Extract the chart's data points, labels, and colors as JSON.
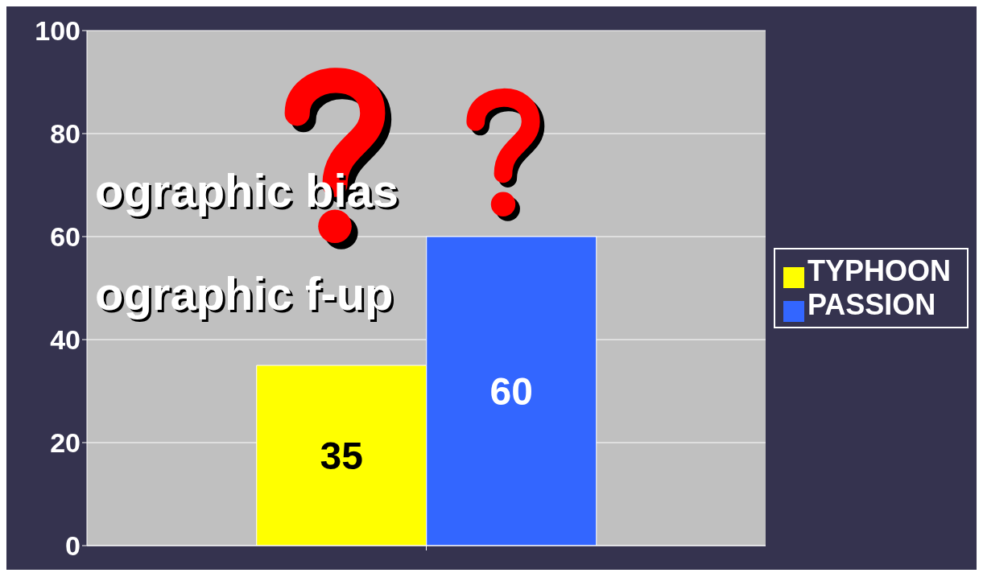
{
  "chart_data": {
    "type": "bar",
    "categories": [
      null
    ],
    "series": [
      {
        "name": "TYPHOON",
        "color": "#ffff00",
        "values": [
          35
        ]
      },
      {
        "name": "PASSION",
        "color": "#3366ff",
        "values": [
          60
        ]
      }
    ],
    "ylim": [
      0,
      100
    ],
    "yticks": [
      0,
      20,
      40,
      60,
      80,
      100
    ],
    "grid": "y",
    "legend": "right",
    "data_labels": true,
    "annotations": [
      "ographic bias",
      "ographic f-up"
    ]
  }
}
